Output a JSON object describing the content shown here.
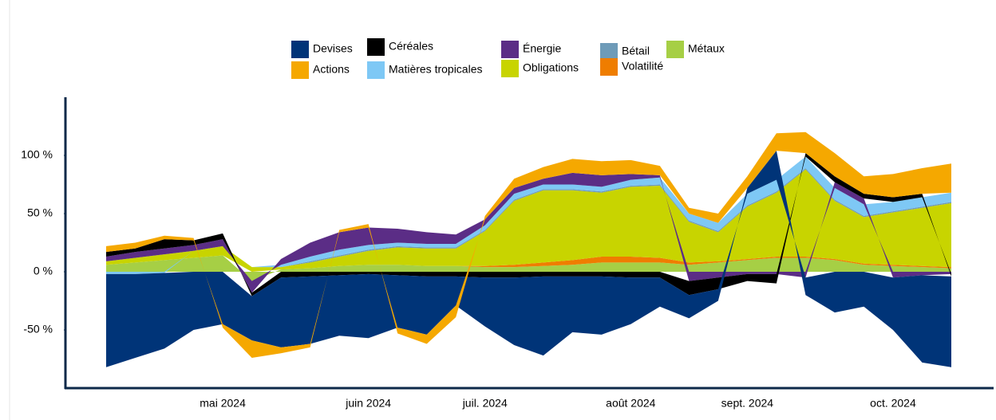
{
  "chart_data": {
    "type": "stacked_area",
    "categories": [
      null,
      null,
      null,
      null,
      "mai 2024",
      null,
      null,
      null,
      null,
      "juin 2024",
      null,
      null,
      null,
      "juil. 2024",
      null,
      null,
      null,
      null,
      "août 2024",
      null,
      null,
      null,
      "sept. 2024",
      null,
      null,
      null,
      null,
      "oct. 2024",
      null,
      null
    ],
    "ylim": [
      -100,
      150
    ],
    "yticks": [
      {
        "value": -50,
        "label": "-50 %"
      },
      {
        "value": 0,
        "label": "0 %"
      },
      {
        "value": 50,
        "label": "50 %"
      },
      {
        "value": 100,
        "label": "100 %"
      }
    ],
    "grid": false,
    "series": [
      {
        "name": "Devises",
        "color": "#003478",
        "values": [
          -80,
          -72,
          -65,
          -50,
          -45,
          -38,
          -60,
          -58,
          -52,
          -55,
          -45,
          -50,
          -25,
          -42,
          -58,
          -68,
          -48,
          -50,
          -40,
          -25,
          -20,
          -10,
          5,
          25,
          -15,
          -35,
          -30,
          -45,
          -75,
          -78
        ]
      },
      {
        "name": "Actions",
        "color": "#f5a800",
        "values": [
          5,
          5,
          3,
          2,
          -3,
          -15,
          -5,
          -3,
          2,
          3,
          -5,
          -8,
          -10,
          3,
          8,
          10,
          12,
          12,
          12,
          8,
          5,
          8,
          10,
          15,
          18,
          20,
          15,
          20,
          22,
          25
        ]
      },
      {
        "name": "Céréales",
        "color": "#000000",
        "values": [
          4,
          3,
          8,
          4,
          5,
          -3,
          -5,
          -4,
          -3,
          -2,
          -3,
          -4,
          -4,
          -5,
          -5,
          -4,
          -4,
          -4,
          -5,
          -5,
          -12,
          -10,
          -6,
          -8,
          3,
          5,
          4,
          4,
          3,
          -2
        ]
      },
      {
        "name": "Matières tropicales",
        "color": "#7ec8f5",
        "values": [
          -2,
          -2,
          -1,
          0,
          0,
          0,
          2,
          4,
          5,
          4,
          3,
          3,
          3,
          4,
          5,
          4,
          4,
          4,
          5,
          6,
          6,
          7,
          10,
          10,
          10,
          10,
          10,
          8,
          8,
          8
        ]
      },
      {
        "name": "Énergie",
        "color": "#5b2d86",
        "values": [
          4,
          5,
          5,
          5,
          6,
          -10,
          5,
          12,
          15,
          15,
          12,
          10,
          8,
          5,
          5,
          5,
          10,
          10,
          5,
          2,
          -8,
          -5,
          -2,
          -2,
          -5,
          5,
          5,
          -5,
          -3,
          -2
        ]
      },
      {
        "name": "Obligations",
        "color": "#c8d400",
        "values": [
          3,
          4,
          5,
          6,
          8,
          4,
          2,
          5,
          8,
          12,
          15,
          15,
          15,
          30,
          55,
          62,
          60,
          55,
          60,
          62,
          35,
          25,
          45,
          55,
          75,
          50,
          40,
          45,
          50,
          55
        ]
      },
      {
        "name": "Bétail",
        "color": "#6e9bb8",
        "values": [
          0,
          0,
          0,
          0,
          0,
          0,
          0,
          1,
          1,
          1,
          1,
          1,
          1,
          1,
          1,
          1,
          1,
          1,
          1,
          1,
          1,
          1,
          1,
          1,
          1,
          1,
          1,
          1,
          1,
          1
        ]
      },
      {
        "name": "Volatilité",
        "color": "#ef7d00",
        "values": [
          0,
          0,
          0,
          0,
          0,
          0,
          0,
          0,
          0,
          0,
          0,
          0,
          0,
          1,
          2,
          3,
          4,
          5,
          5,
          4,
          2,
          1,
          1,
          1,
          1,
          1,
          1,
          1,
          1,
          1
        ]
      },
      {
        "name": "Métaux",
        "color": "#a6cf45",
        "values": [
          6,
          8,
          10,
          12,
          14,
          -8,
          2,
          3,
          5,
          6,
          6,
          5,
          5,
          4,
          4,
          5,
          6,
          8,
          8,
          8,
          6,
          8,
          10,
          12,
          12,
          10,
          6,
          5,
          4,
          3
        ]
      }
    ]
  }
}
